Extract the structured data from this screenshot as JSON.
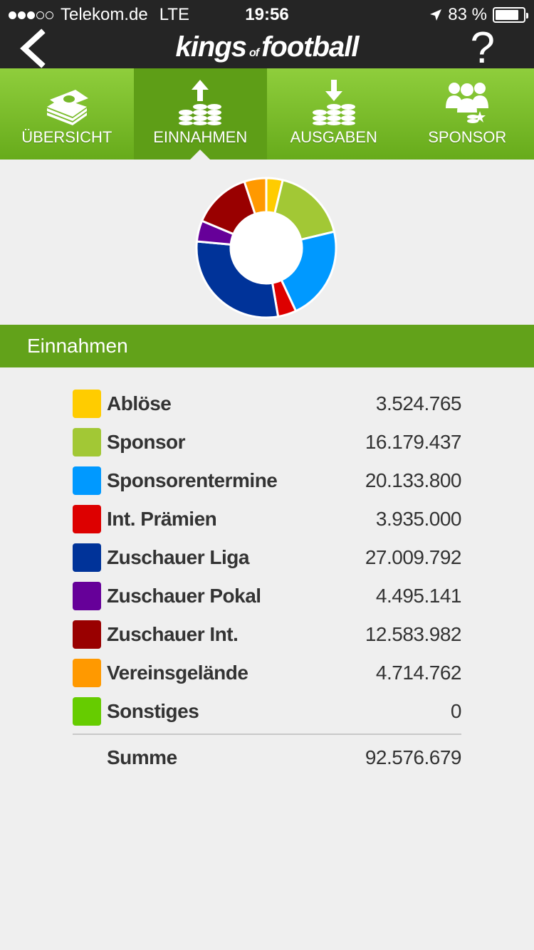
{
  "status_bar": {
    "carrier": "Telekom.de",
    "network": "LTE",
    "time": "19:56",
    "battery": "83 %",
    "battery_level": 0.83
  },
  "navbar": {
    "logo_left": "kings",
    "logo_mid": "of",
    "logo_right": "football",
    "help": "?"
  },
  "tabs": [
    {
      "label": "ÜBERSICHT",
      "icon": "money-stack-icon",
      "active": false
    },
    {
      "label": "EINNAHMEN",
      "icon": "coins-up-icon",
      "active": true
    },
    {
      "label": "AUSGABEN",
      "icon": "coins-down-icon",
      "active": false
    },
    {
      "label": "SPONSOR",
      "icon": "sponsor-group-icon",
      "active": false
    }
  ],
  "section": {
    "title": "Einnahmen"
  },
  "chart_data": {
    "type": "pie",
    "donut": true,
    "categories": [
      "Ablöse",
      "Sponsor",
      "Sponsorentermine",
      "Int. Prämien",
      "Zuschauer Liga",
      "Zuschauer Pokal",
      "Zuschauer Int.",
      "Vereinsgelände",
      "Sonstiges"
    ],
    "values": [
      3524765,
      16179437,
      20133800,
      3935000,
      27009792,
      4495141,
      12583982,
      4714762,
      0
    ],
    "colors": [
      "#ffcc00",
      "#a2c835",
      "#0099ff",
      "#dd0000",
      "#003399",
      "#660099",
      "#990000",
      "#ff9900",
      "#66cc00"
    ]
  },
  "legend": [
    {
      "label": "Ablöse",
      "value": "3.524.765",
      "color": "#ffcc00"
    },
    {
      "label": "Sponsor",
      "value": "16.179.437",
      "color": "#a2c835"
    },
    {
      "label": "Sponsorentermine",
      "value": "20.133.800",
      "color": "#0099ff"
    },
    {
      "label": "Int. Prämien",
      "value": "3.935.000",
      "color": "#dd0000"
    },
    {
      "label": "Zuschauer Liga",
      "value": "27.009.792",
      "color": "#003399"
    },
    {
      "label": "Zuschauer Pokal",
      "value": "4.495.141",
      "color": "#660099"
    },
    {
      "label": "Zuschauer Int.",
      "value": "12.583.982",
      "color": "#990000"
    },
    {
      "label": "Vereinsgelände",
      "value": "4.714.762",
      "color": "#ff9900"
    },
    {
      "label": "Sonstiges",
      "value": "0",
      "color": "#66cc00"
    }
  ],
  "total": {
    "label": "Summe",
    "value": "92.576.679"
  }
}
